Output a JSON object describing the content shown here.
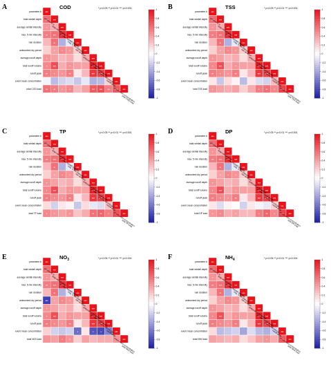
{
  "chart_data": {
    "type": "heatmap",
    "legend_ticks": [
      "1",
      "0.8",
      "0.6",
      "0.4",
      "0.2",
      "0",
      "-0.2",
      "-0.4",
      "-0.6",
      "-0.8",
      "-1"
    ],
    "significance_note": "* p<0.05 ** p<0.01 *** p<0.001",
    "colors": {
      "positive": "#e8131b",
      "neutral": "#ffffff",
      "negative": "#1c1ea8"
    },
    "variables": [
      "parameter b",
      "total rainfall depth",
      "average rainfall intensity",
      "max. 5 min intensity",
      "rain duration",
      "antecedent dry period",
      "average runoff depth",
      "total runoff volume",
      "runoff peak",
      "event mean concentration"
    ],
    "panels": [
      {
        "label": "A",
        "title": "COD",
        "load_label": "total COD load",
        "values": [
          [
            1.0
          ],
          [
            0.62,
            1.0
          ],
          [
            0.45,
            0.35,
            1.0
          ],
          [
            0.55,
            0.6,
            0.9,
            1.0
          ],
          [
            0.3,
            0.6,
            -0.35,
            -0.1,
            1.0
          ],
          [
            0.2,
            0.4,
            0.5,
            0.45,
            0.2,
            1.0
          ],
          [
            0.45,
            0.4,
            0.3,
            0.35,
            0.15,
            0.35,
            1.0
          ],
          [
            0.5,
            0.75,
            0.35,
            0.45,
            0.4,
            0.4,
            0.95,
            1.0
          ],
          [
            0.55,
            0.5,
            0.45,
            0.55,
            0.1,
            0.3,
            0.85,
            0.8,
            1.0
          ],
          [
            -0.05,
            -0.3,
            -0.2,
            -0.15,
            -0.25,
            -0.1,
            -0.35,
            -0.3,
            0.2,
            1.0
          ],
          [
            0.6,
            0.55,
            0.45,
            0.5,
            0.3,
            0.4,
            0.7,
            0.75,
            0.55,
            0.7,
            1.0
          ]
        ],
        "sig": [
          [
            "***"
          ],
          [
            "***",
            "***"
          ],
          [
            "*",
            "",
            "***"
          ],
          [
            "**",
            "***",
            "***",
            "***"
          ],
          [
            "",
            "**",
            "",
            "",
            "***"
          ],
          [
            "",
            "*",
            "*",
            "*",
            "",
            "***"
          ],
          [
            "*",
            "",
            "",
            "",
            "",
            "",
            "***"
          ],
          [
            "*",
            "***",
            "",
            "*",
            "",
            "",
            "***",
            "***"
          ],
          [
            "**",
            "*",
            "*",
            "**",
            "",
            "",
            "***",
            "***",
            "***"
          ],
          [
            "",
            "",
            "",
            "",
            "",
            "",
            "",
            "",
            "",
            "***"
          ],
          [
            "**",
            "**",
            "*",
            "*",
            "",
            "",
            "***",
            "***",
            "**",
            "***",
            "***"
          ]
        ]
      },
      {
        "label": "B",
        "title": "TSS",
        "load_label": "total TSS load",
        "values": [
          [
            1.0
          ],
          [
            0.62,
            1.0
          ],
          [
            0.45,
            0.35,
            1.0
          ],
          [
            0.55,
            0.6,
            0.9,
            1.0
          ],
          [
            0.3,
            0.6,
            -0.35,
            -0.1,
            1.0
          ],
          [
            0.2,
            0.4,
            0.5,
            0.45,
            0.2,
            1.0
          ],
          [
            0.45,
            0.4,
            0.3,
            0.35,
            0.15,
            0.35,
            1.0
          ],
          [
            0.5,
            0.75,
            0.35,
            0.45,
            0.4,
            0.4,
            0.95,
            1.0
          ],
          [
            0.55,
            0.5,
            0.45,
            0.55,
            0.1,
            0.3,
            0.85,
            0.8,
            1.0
          ],
          [
            0.1,
            -0.25,
            0.15,
            0.05,
            -0.3,
            0.1,
            -0.15,
            -0.2,
            0.3,
            1.0
          ],
          [
            0.45,
            0.4,
            0.35,
            0.4,
            0.2,
            0.35,
            0.55,
            0.6,
            0.5,
            0.8,
            1.0
          ]
        ],
        "sig": [
          [
            "***"
          ],
          [
            "***",
            "***"
          ],
          [
            "*",
            "",
            "***"
          ],
          [
            "**",
            "***",
            "***",
            "***"
          ],
          [
            "",
            "**",
            "",
            "",
            "***"
          ],
          [
            "",
            "*",
            "*",
            "*",
            "",
            "***"
          ],
          [
            "*",
            "",
            "",
            "",
            "",
            "",
            "***"
          ],
          [
            "*",
            "***",
            "",
            "*",
            "",
            "",
            "***",
            "***"
          ],
          [
            "**",
            "*",
            "*",
            "**",
            "",
            "",
            "***",
            "***",
            "***"
          ],
          [
            "",
            "",
            "",
            "",
            "",
            "",
            "",
            "",
            "",
            "***"
          ],
          [
            "*",
            "",
            "",
            "",
            "",
            "",
            "*",
            "**",
            "*",
            "***",
            "***"
          ]
        ]
      },
      {
        "label": "C",
        "title": "TP",
        "load_label": "total TP load",
        "values": [
          [
            1.0
          ],
          [
            0.62,
            1.0
          ],
          [
            0.45,
            0.35,
            1.0
          ],
          [
            0.55,
            0.6,
            0.9,
            1.0
          ],
          [
            0.3,
            0.6,
            -0.35,
            -0.1,
            1.0
          ],
          [
            0.2,
            0.4,
            0.5,
            0.45,
            0.2,
            1.0
          ],
          [
            0.45,
            0.4,
            0.3,
            0.35,
            0.15,
            0.35,
            1.0
          ],
          [
            0.5,
            0.75,
            0.35,
            0.45,
            0.4,
            0.4,
            0.95,
            1.0
          ],
          [
            0.55,
            0.5,
            0.45,
            0.55,
            0.1,
            0.3,
            0.85,
            0.8,
            1.0
          ],
          [
            0.15,
            -0.2,
            0.1,
            0.05,
            -0.25,
            0.15,
            -0.1,
            -0.15,
            0.25,
            1.0
          ],
          [
            0.5,
            0.45,
            0.4,
            0.45,
            0.25,
            0.35,
            0.6,
            0.65,
            0.55,
            0.75,
            1.0
          ]
        ],
        "sig": [
          [
            "***"
          ],
          [
            "***",
            "***"
          ],
          [
            "*",
            "",
            "***"
          ],
          [
            "**",
            "***",
            "***",
            "***"
          ],
          [
            "",
            "**",
            "",
            "",
            "***"
          ],
          [
            "",
            "*",
            "*",
            "*",
            "",
            "***"
          ],
          [
            "*",
            "",
            "",
            "",
            "",
            "",
            "***"
          ],
          [
            "*",
            "***",
            "",
            "*",
            "",
            "",
            "***",
            "***"
          ],
          [
            "**",
            "*",
            "*",
            "**",
            "",
            "",
            "***",
            "***",
            "***"
          ],
          [
            "",
            "",
            "",
            "",
            "",
            "",
            "",
            "",
            "",
            "***"
          ],
          [
            "*",
            "*",
            "",
            "*",
            "",
            "",
            "**",
            "**",
            "*",
            "**",
            "***"
          ]
        ]
      },
      {
        "label": "D",
        "title": "DP",
        "load_label": "total DP load",
        "values": [
          [
            1.0
          ],
          [
            0.62,
            1.0
          ],
          [
            0.45,
            0.35,
            1.0
          ],
          [
            0.55,
            0.6,
            0.9,
            1.0
          ],
          [
            0.3,
            0.6,
            -0.35,
            -0.1,
            1.0
          ],
          [
            0.2,
            0.4,
            0.5,
            0.45,
            0.2,
            1.0
          ],
          [
            0.45,
            0.4,
            0.3,
            0.35,
            0.15,
            0.35,
            1.0
          ],
          [
            0.5,
            0.75,
            0.35,
            0.45,
            0.4,
            0.4,
            0.95,
            1.0
          ],
          [
            0.55,
            0.5,
            0.45,
            0.55,
            0.1,
            0.3,
            0.85,
            0.8,
            1.0
          ],
          [
            0.1,
            -0.15,
            0.05,
            0.0,
            -0.2,
            0.1,
            -0.05,
            -0.1,
            0.2,
            1.0
          ],
          [
            0.45,
            0.5,
            0.35,
            0.4,
            0.3,
            0.3,
            0.55,
            0.65,
            0.5,
            0.8,
            1.0
          ]
        ],
        "sig": [
          [
            "***"
          ],
          [
            "***",
            "***"
          ],
          [
            "*",
            "",
            "***"
          ],
          [
            "**",
            "***",
            "***",
            "***"
          ],
          [
            "",
            "**",
            "",
            "",
            "***"
          ],
          [
            "",
            "*",
            "*",
            "*",
            "",
            "***"
          ],
          [
            "*",
            "",
            "",
            "",
            "",
            "",
            "***"
          ],
          [
            "*",
            "***",
            "",
            "*",
            "",
            "",
            "***",
            "***"
          ],
          [
            "**",
            "*",
            "*",
            "**",
            "",
            "",
            "***",
            "***",
            "***"
          ],
          [
            "",
            "",
            "",
            "",
            "",
            "",
            "",
            "",
            "",
            "***"
          ],
          [
            "*",
            "*",
            "",
            "*",
            "",
            "",
            "*",
            "**",
            "*",
            "***",
            "***"
          ]
        ]
      },
      {
        "label": "E",
        "title": "NO3",
        "load_label": "total NO3 load",
        "values": [
          [
            1.0
          ],
          [
            0.62,
            1.0
          ],
          [
            0.45,
            0.35,
            1.0
          ],
          [
            0.55,
            0.6,
            0.9,
            1.0
          ],
          [
            0.3,
            0.6,
            -0.35,
            -0.1,
            1.0
          ],
          [
            -0.85,
            0.4,
            0.5,
            0.45,
            0.2,
            1.0
          ],
          [
            0.45,
            0.4,
            0.3,
            0.35,
            0.15,
            0.35,
            1.0
          ],
          [
            0.5,
            0.75,
            0.35,
            0.45,
            0.4,
            0.4,
            0.95,
            1.0
          ],
          [
            0.55,
            0.5,
            0.45,
            0.55,
            0.1,
            0.3,
            0.85,
            0.8,
            1.0
          ],
          [
            0.2,
            -0.2,
            -0.25,
            -0.2,
            -0.65,
            0.1,
            -0.75,
            -0.8,
            -0.55,
            1.0
          ],
          [
            0.45,
            0.4,
            0.55,
            0.45,
            0.2,
            0.4,
            0.3,
            0.35,
            0.35,
            0.45,
            1.0
          ]
        ],
        "sig": [
          [
            "***"
          ],
          [
            "***",
            "***"
          ],
          [
            "*",
            "",
            "***"
          ],
          [
            "**",
            "***",
            "***",
            "***"
          ],
          [
            "",
            "**",
            "",
            "",
            "***"
          ],
          [
            "***",
            "*",
            "*",
            "*",
            "",
            "***"
          ],
          [
            "*",
            "",
            "",
            "",
            "",
            "",
            "***"
          ],
          [
            "*",
            "***",
            "",
            "*",
            "",
            "",
            "***",
            "***"
          ],
          [
            "**",
            "*",
            "*",
            "**",
            "",
            "",
            "***",
            "***",
            "***"
          ],
          [
            "",
            "",
            "",
            "",
            "*",
            "",
            "*",
            "*",
            "",
            "***"
          ],
          [
            "",
            "",
            "*",
            "*",
            "",
            "",
            "",
            "",
            "",
            "",
            "***"
          ]
        ]
      },
      {
        "label": "F",
        "title": "NH4",
        "load_label": "total NH4 load",
        "values": [
          [
            1.0
          ],
          [
            0.62,
            1.0
          ],
          [
            0.45,
            0.35,
            1.0
          ],
          [
            0.55,
            0.6,
            0.9,
            1.0
          ],
          [
            0.3,
            0.6,
            -0.35,
            -0.1,
            1.0
          ],
          [
            0.2,
            0.4,
            0.5,
            0.45,
            0.2,
            1.0
          ],
          [
            0.45,
            0.4,
            0.3,
            0.35,
            0.15,
            0.35,
            1.0
          ],
          [
            0.5,
            0.75,
            0.35,
            0.45,
            0.4,
            0.4,
            0.95,
            1.0
          ],
          [
            0.55,
            0.5,
            0.45,
            0.55,
            0.1,
            0.3,
            0.85,
            0.8,
            1.0
          ],
          [
            0.15,
            -0.3,
            -0.25,
            -0.2,
            -0.4,
            -0.15,
            -0.3,
            -0.35,
            -0.2,
            1.0
          ],
          [
            0.4,
            0.35,
            0.3,
            0.35,
            0.15,
            0.25,
            0.4,
            0.45,
            0.35,
            0.7,
            1.0
          ]
        ],
        "sig": [
          [
            "***"
          ],
          [
            "***",
            "***"
          ],
          [
            "*",
            "",
            "***"
          ],
          [
            "**",
            "***",
            "***",
            "***"
          ],
          [
            "",
            "**",
            "",
            "",
            "***"
          ],
          [
            "",
            "*",
            "*",
            "*",
            "",
            "***"
          ],
          [
            "*",
            "",
            "",
            "",
            "",
            "",
            "***"
          ],
          [
            "*",
            "***",
            "",
            "*",
            "",
            "",
            "***",
            "***"
          ],
          [
            "**",
            "*",
            "*",
            "**",
            "",
            "",
            "***",
            "***",
            "***"
          ],
          [
            "",
            "",
            "",
            "",
            "",
            "",
            "",
            "",
            "",
            "***"
          ],
          [
            "",
            "",
            "",
            "",
            "",
            "",
            "",
            "*",
            "",
            "***",
            "***"
          ]
        ]
      }
    ]
  }
}
